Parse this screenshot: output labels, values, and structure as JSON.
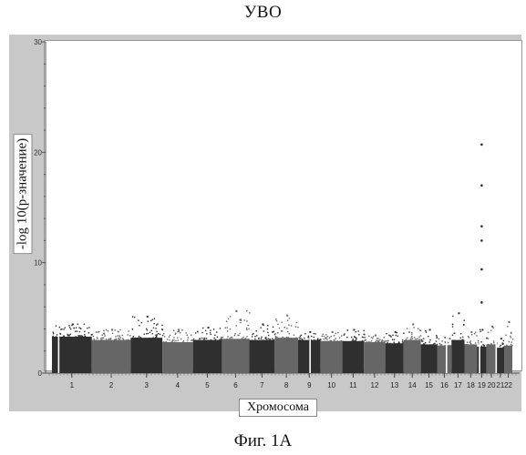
{
  "page": {
    "title": "УВО",
    "caption": "Фиг. 1А"
  },
  "chart_data": {
    "type": "scatter",
    "subtype": "manhattan",
    "title": "УВО",
    "xlabel": "Хромосома",
    "ylabel": "-log 10(р-значение)",
    "ylim": [
      0,
      30
    ],
    "yticks": [
      "0",
      "10",
      "20",
      "30"
    ],
    "categories": [
      "1",
      "2",
      "3",
      "4",
      "5",
      "6",
      "7",
      "8",
      "9",
      "10",
      "11",
      "12",
      "13",
      "14",
      "15",
      "16",
      "17",
      "18",
      "19",
      "20",
      "21",
      "22"
    ],
    "background_max": [
      4.5,
      4.0,
      5.2,
      4.0,
      4.2,
      5.7,
      4.5,
      5.3,
      3.8,
      3.8,
      4.0,
      3.5,
      3.8,
      4.5,
      4.0,
      3.3,
      5.5,
      3.8,
      4.0,
      4.3,
      3.2,
      4.7
    ],
    "notable_points": [
      {
        "chromosome": "19",
        "y": 20.7
      },
      {
        "chromosome": "19",
        "y": 17.0
      },
      {
        "chromosome": "19",
        "y": 13.3
      },
      {
        "chromosome": "19",
        "y": 12.0
      },
      {
        "chromosome": "19",
        "y": 9.4
      },
      {
        "chromosome": "19",
        "y": 6.4
      }
    ],
    "colors": {
      "odd": "#2f2f2f",
      "even": "#666666",
      "frame": "#c8c8c8",
      "plot_bg": "#ffffff"
    },
    "grid": false,
    "legend": "none"
  }
}
